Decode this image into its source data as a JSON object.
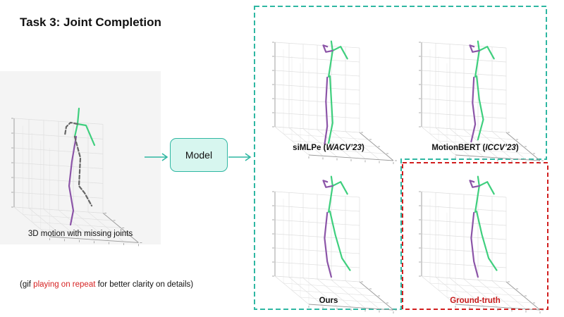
{
  "title": "Task 3: Joint Completion",
  "input": {
    "caption": "3D motion with missing joints"
  },
  "model": {
    "label": "Model"
  },
  "note": {
    "prefix": "(gif ",
    "highlight": "playing on repeat",
    "suffix": " for better clarity on details)"
  },
  "results": [
    {
      "method": "siMLPe",
      "venue": "WACV’23"
    },
    {
      "method": "MotionBERT",
      "venue": "ICCV’23"
    },
    {
      "method": "Ours",
      "venue": ""
    },
    {
      "method": "Ground-truth",
      "venue": ""
    }
  ],
  "colors": {
    "teal": "#2fb7a2",
    "red": "#d11e1e",
    "purple": "#8c55a8",
    "green": "#3fcf7e",
    "missing": "#666666",
    "axis": "#9a9a9a",
    "grid": "#dedede"
  }
}
